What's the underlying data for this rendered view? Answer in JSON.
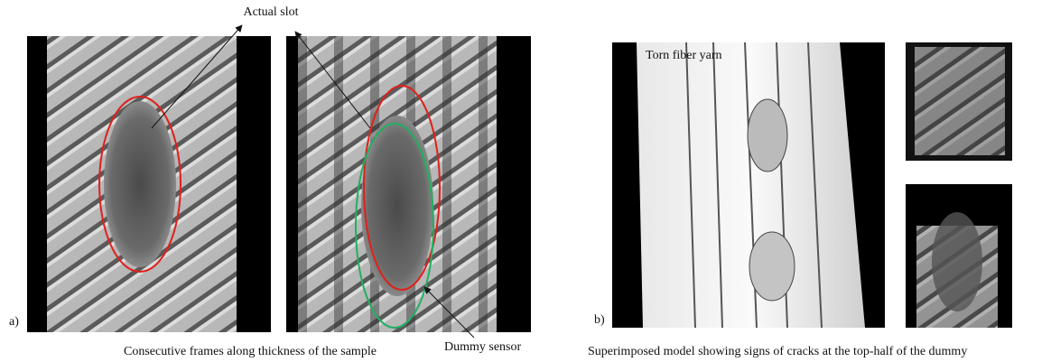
{
  "panel_a": {
    "label": "a)",
    "annotations": {
      "actual_slot": "Actual slot",
      "dummy_sensor": "Dummy sensor"
    },
    "caption": "Consecutive frames along thickness of the sample"
  },
  "panel_b": {
    "label": "b)",
    "annotation": "Torn fiber yarn",
    "caption": "Superimposed model showing signs of cracks at the top-half of the dummy"
  }
}
